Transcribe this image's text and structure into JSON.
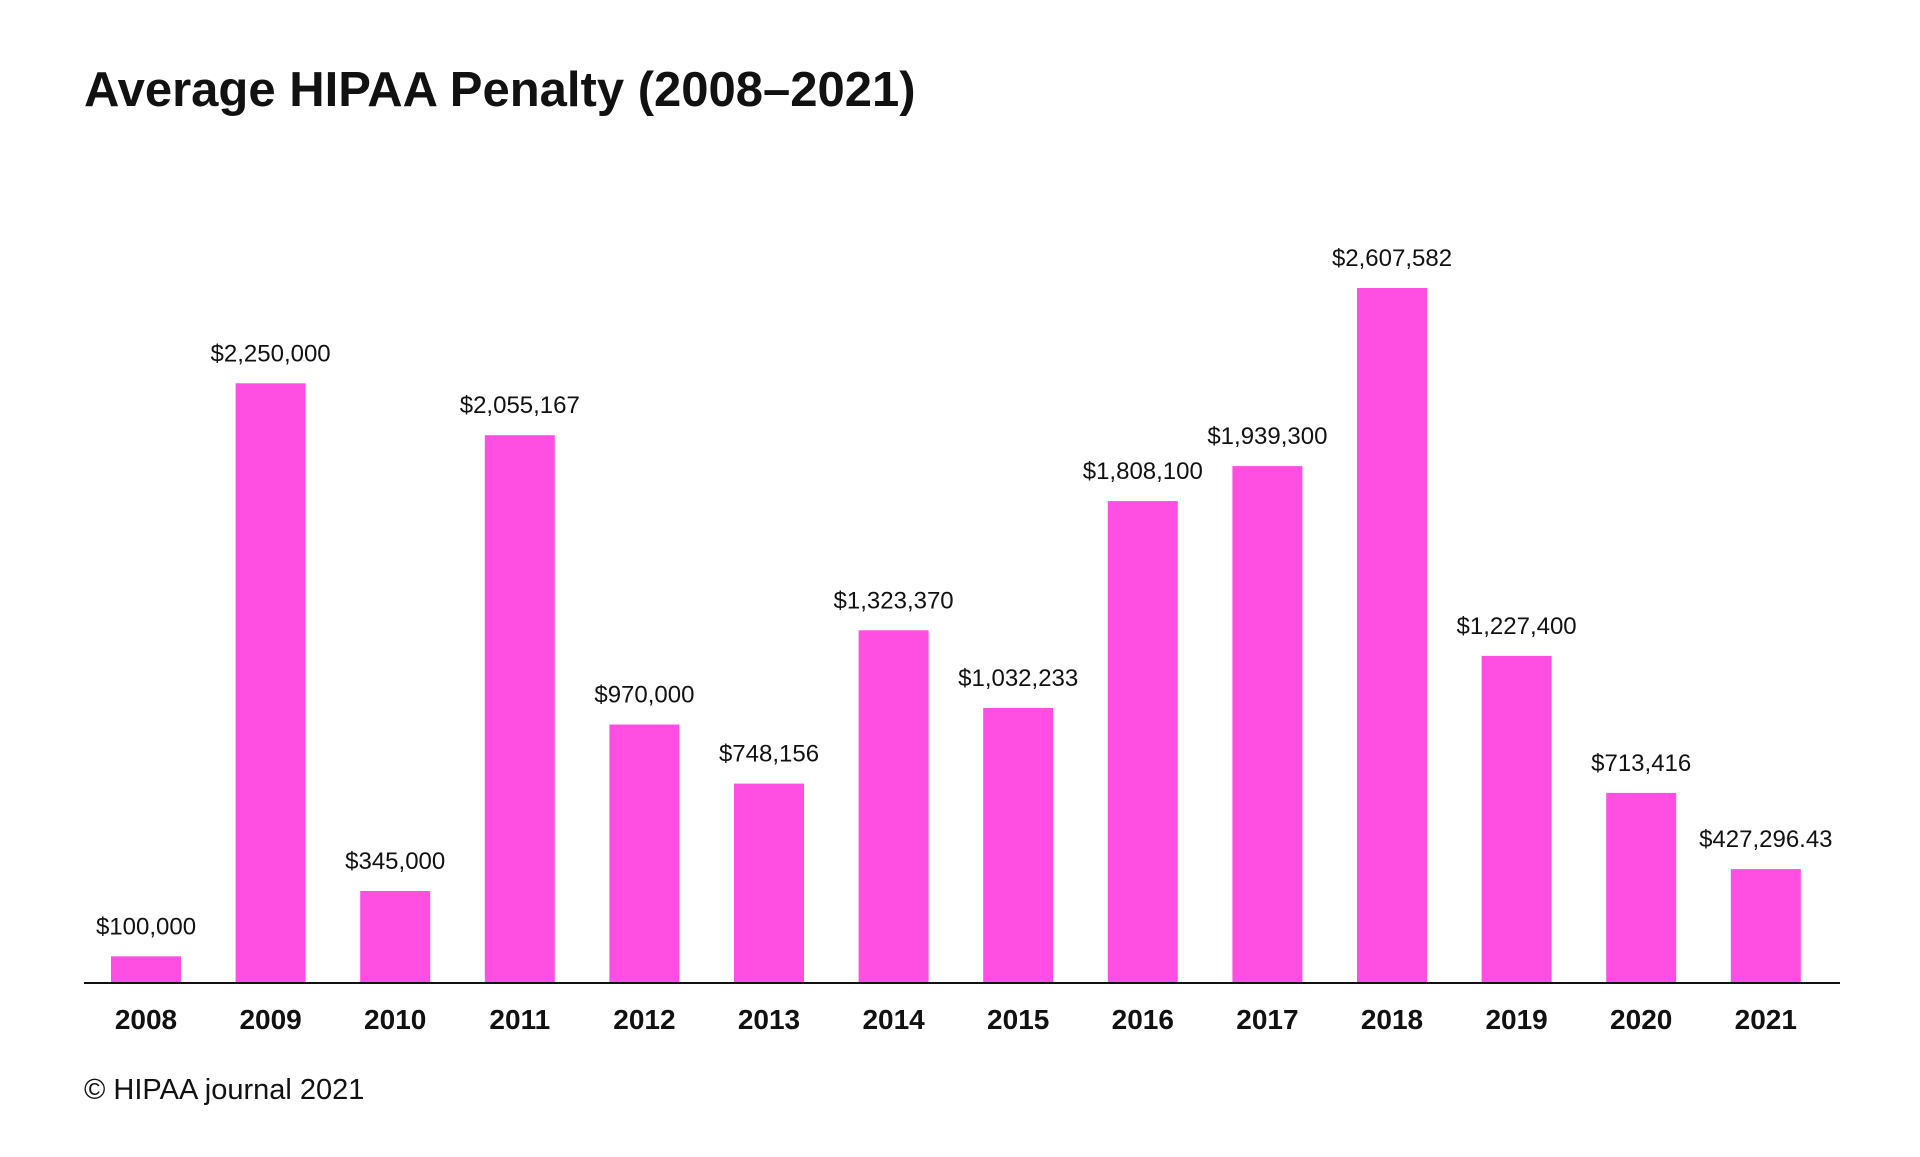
{
  "chart_data": {
    "type": "bar",
    "title": "Average HIPAA Penalty (2008–2021)",
    "xlabel": "",
    "ylabel": "",
    "categories": [
      "2008",
      "2009",
      "2010",
      "2011",
      "2012",
      "2013",
      "2014",
      "2015",
      "2016",
      "2017",
      "2018",
      "2019",
      "2020",
      "2021"
    ],
    "values": [
      100000,
      2250000,
      345000,
      2055167,
      970000,
      748156,
      1323370,
      1032233,
      1808100,
      1939300,
      2607582,
      1227400,
      713416,
      427296.43
    ],
    "value_labels": [
      "$100,000",
      "$2,250,000",
      "$345,000",
      "$2,055,167",
      "$970,000",
      "$748,156",
      "$1,323,370",
      "$1,032,233",
      "$1,808,100",
      "$1,939,300",
      "$2,607,582",
      "$1,227,400",
      "$713,416",
      "$427,296.43"
    ],
    "ylim": [
      0,
      2607582
    ],
    "grid": false,
    "legend": "none",
    "bar_color": "#ff4fe3",
    "axis_color": "#111111"
  },
  "footer": {
    "copyright": "© HIPAA journal 2021"
  }
}
